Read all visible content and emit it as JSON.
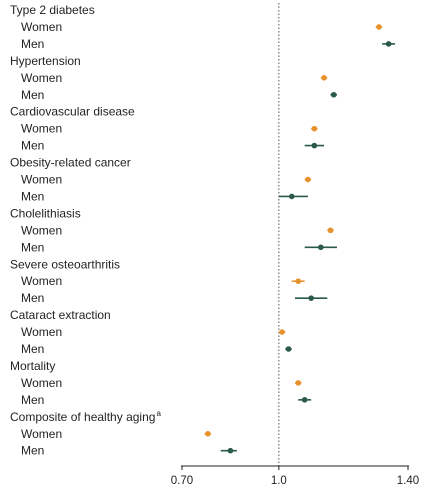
{
  "chart_data": {
    "type": "scatter",
    "title": "",
    "xlabel": "",
    "ylabel": "",
    "xlim": [
      0.7,
      1.4
    ],
    "x_ticks": [
      "0.70",
      "1.0",
      "1.40"
    ],
    "x_tick_values": [
      0.7,
      1.0,
      1.4
    ],
    "reference_line": 1.0,
    "reference_line_style": "dotted",
    "grid": false,
    "colors": {
      "Women": "#e8922e",
      "Men": "#2a5a48"
    },
    "series": [
      {
        "name": "Women",
        "marker": "circle"
      },
      {
        "name": "Men",
        "marker": "circle"
      }
    ],
    "outcomes": [
      {
        "label": "Type 2 diabetes",
        "superscript": "",
        "rows": [
          {
            "sex": "Women",
            "estimate": 1.31,
            "ci": [
              1.3,
              1.32
            ]
          },
          {
            "sex": "Men",
            "estimate": 1.34,
            "ci": [
              1.32,
              1.36
            ]
          }
        ]
      },
      {
        "label": "Hypertension",
        "superscript": "",
        "rows": [
          {
            "sex": "Women",
            "estimate": 1.14,
            "ci": [
              1.13,
              1.15
            ]
          },
          {
            "sex": "Men",
            "estimate": 1.17,
            "ci": [
              1.16,
              1.18
            ]
          }
        ]
      },
      {
        "label": "Cardiovascular disease",
        "superscript": "",
        "rows": [
          {
            "sex": "Women",
            "estimate": 1.11,
            "ci": [
              1.1,
              1.12
            ]
          },
          {
            "sex": "Men",
            "estimate": 1.11,
            "ci": [
              1.08,
              1.14
            ]
          }
        ]
      },
      {
        "label": "Obesity-related cancer",
        "superscript": "",
        "rows": [
          {
            "sex": "Women",
            "estimate": 1.09,
            "ci": [
              1.08,
              1.1
            ]
          },
          {
            "sex": "Men",
            "estimate": 1.04,
            "ci": [
              1.0,
              1.09
            ]
          }
        ]
      },
      {
        "label": "Cholelithiasis",
        "superscript": "",
        "rows": [
          {
            "sex": "Women",
            "estimate": 1.16,
            "ci": [
              1.15,
              1.17
            ]
          },
          {
            "sex": "Men",
            "estimate": 1.13,
            "ci": [
              1.08,
              1.18
            ]
          }
        ]
      },
      {
        "label": "Severe osteoarthritis",
        "superscript": "",
        "rows": [
          {
            "sex": "Women",
            "estimate": 1.06,
            "ci": [
              1.04,
              1.08
            ]
          },
          {
            "sex": "Men",
            "estimate": 1.1,
            "ci": [
              1.05,
              1.15
            ]
          }
        ]
      },
      {
        "label": "Cataract extraction",
        "superscript": "",
        "rows": [
          {
            "sex": "Women",
            "estimate": 1.01,
            "ci": [
              1.0,
              1.02
            ]
          },
          {
            "sex": "Men",
            "estimate": 1.03,
            "ci": [
              1.02,
              1.04
            ]
          }
        ]
      },
      {
        "label": "Mortality",
        "superscript": "",
        "rows": [
          {
            "sex": "Women",
            "estimate": 1.06,
            "ci": [
              1.05,
              1.07
            ]
          },
          {
            "sex": "Men",
            "estimate": 1.08,
            "ci": [
              1.06,
              1.1
            ]
          }
        ]
      },
      {
        "label": "Composite of healthy aging",
        "superscript": "a",
        "rows": [
          {
            "sex": "Women",
            "estimate": 0.78,
            "ci": [
              0.77,
              0.79
            ]
          },
          {
            "sex": "Men",
            "estimate": 0.85,
            "ci": [
              0.82,
              0.87
            ]
          }
        ]
      }
    ]
  }
}
